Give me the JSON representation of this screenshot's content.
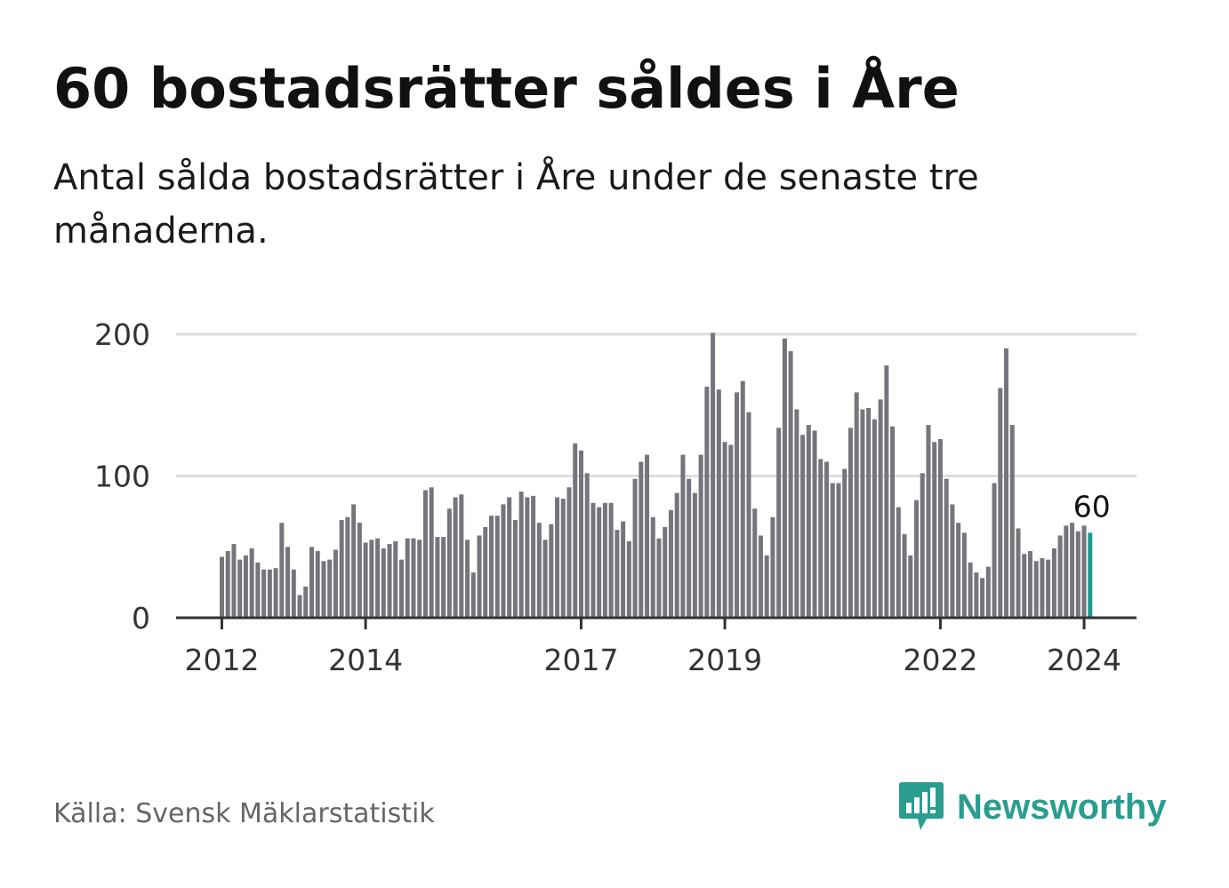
{
  "title": "60 bostadsrätter såldes i Åre",
  "subtitle": "Antal sålda bostadsrätter i Åre under de senaste tre månaderna.",
  "source": "Källa: Svensk Mäklarstatistik",
  "brand": {
    "name": "Newsworthy",
    "icon": "newsworthy-logo-icon"
  },
  "colors": {
    "bar": "#75757b",
    "highlight": "#1a9a8e",
    "grid": "#dddddd",
    "axis": "#333333",
    "brand": "#2a9d8f"
  },
  "chart_data": {
    "type": "bar",
    "title": "60 bostadsrätter såldes i Åre",
    "xlabel": "",
    "ylabel": "",
    "ylim": [
      0,
      200
    ],
    "yticks": [
      0,
      100,
      200
    ],
    "x_start": "2012-01",
    "x_tick_labels": [
      "2012",
      "2014",
      "2017",
      "2019",
      "2022",
      "2024"
    ],
    "x_tick_index": [
      0,
      24,
      60,
      84,
      120,
      144
    ],
    "grid": true,
    "values": [
      43,
      47,
      52,
      41,
      44,
      49,
      39,
      34,
      34,
      35,
      67,
      50,
      34,
      16,
      22,
      50,
      47,
      40,
      41,
      48,
      69,
      71,
      80,
      67,
      53,
      55,
      56,
      49,
      52,
      54,
      41,
      56,
      56,
      55,
      90,
      92,
      57,
      57,
      77,
      85,
      87,
      55,
      32,
      58,
      64,
      72,
      72,
      80,
      85,
      69,
      89,
      85,
      86,
      67,
      55,
      66,
      85,
      84,
      92,
      123,
      118,
      102,
      81,
      78,
      81,
      81,
      62,
      68,
      54,
      98,
      110,
      115,
      71,
      56,
      64,
      76,
      88,
      115,
      98,
      88,
      115,
      163,
      201,
      161,
      124,
      122,
      159,
      167,
      145,
      77,
      58,
      44,
      71,
      134,
      197,
      188,
      147,
      129,
      136,
      132,
      112,
      110,
      95,
      95,
      105,
      134,
      159,
      147,
      148,
      140,
      154,
      178,
      135,
      78,
      59,
      44,
      83,
      102,
      136,
      124,
      126,
      98,
      80,
      67,
      60,
      39,
      32,
      28,
      36,
      95,
      162,
      190,
      136,
      63,
      45,
      47,
      40,
      42,
      41,
      49,
      58,
      65,
      67,
      61,
      65,
      60
    ],
    "annotation": {
      "index": 145,
      "label": "60"
    }
  }
}
